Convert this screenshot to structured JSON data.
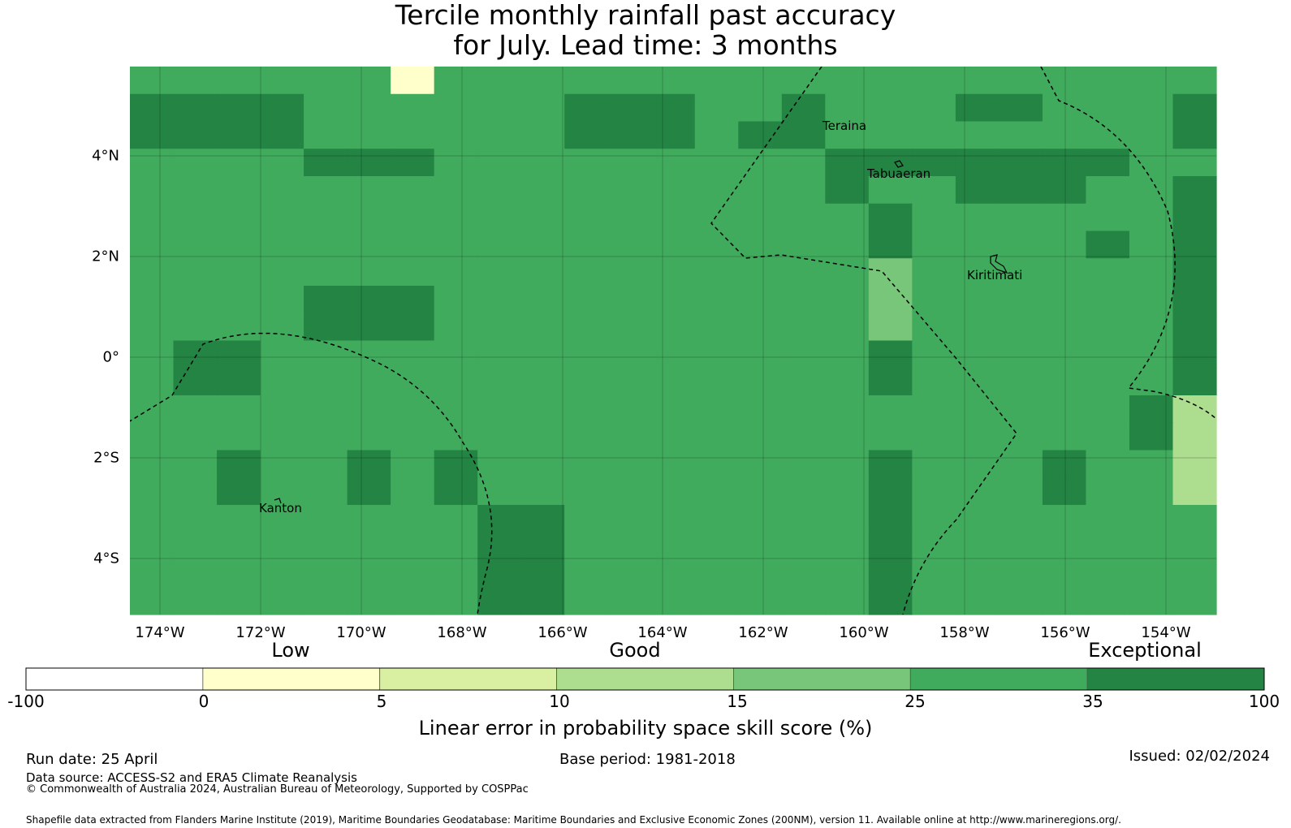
{
  "title": {
    "line1": "Tercile monthly rainfall past accuracy",
    "line2": "for July. Lead time: 3 months"
  },
  "map": {
    "x_ticks": [
      "174°W",
      "172°W",
      "170°W",
      "168°W",
      "166°W",
      "164°W",
      "162°W",
      "160°W",
      "158°W",
      "156°W",
      "154°W"
    ],
    "y_ticks": [
      "4°N",
      "2°N",
      "0°",
      "2°S",
      "4°S"
    ],
    "places": [
      "Teraina",
      "Tabuaeran",
      "Kiritimati",
      "Kanton"
    ],
    "grid_values": [
      "5555551555555555555555555",
      "6666555555666556555665556",
      "6666555555666566555555556",
      "5555666555555555666666655",
      "5555555555555555655666556",
      "5555555555555555565555556",
      "5555555555555555565555656",
      "5555555555555555545555556",
      "5555666555555555545555556",
      "5555666555555555545555556",
      "5665555555555555565555556",
      "5665555555555555565555556",
      "5555555555555555555555563",
      "5555555555555555555555563",
      "5565565655555555565556553",
      "5565565655555555565556553",
      "5555555566555555565555555",
      "5555555566555555565555555",
      "5555555566555555565555555",
      "5555555566555555565555555"
    ],
    "colors": {
      "low": "#ffffff",
      "0-5": "#ffffcc",
      "5-10": "#d9f0a3",
      "10-15": "#addd8e",
      "15-25": "#78c679",
      "25-35": "#41ab5d",
      "35-100": "#238443"
    }
  },
  "legend": {
    "categories": [
      "Low",
      "Good",
      "Exceptional"
    ],
    "bins": [
      -100,
      0,
      5,
      10,
      15,
      25,
      35,
      100
    ],
    "tick_labels": [
      "-100",
      "0",
      "5",
      "10",
      "15",
      "25",
      "35",
      "100"
    ],
    "bin_colors": [
      "#ffffff",
      "#ffffcc",
      "#d9f0a3",
      "#addd8e",
      "#78c679",
      "#41ab5d",
      "#238443"
    ],
    "label": "Linear error in probability space skill score (%)"
  },
  "footer": {
    "run_date": "Run date: 25 April",
    "base_period": "Base period: 1981-2018",
    "issued": "Issued: 02/02/2024",
    "data_source": "Data source: ACCESS-S2 and ERA5 Climate Reanalysis",
    "copyright": "© Commonwealth of Australia 2024, Australian Bureau of Meteorology, Supported by COSPPac",
    "shapefile": "Shapefile data extracted from Flanders Marine Institute (2019), Maritime Boundaries Geodatabase: Maritime Boundaries and Exclusive Economic Zones (200NM), version 11. Available online at http://www.marineregions.org/."
  }
}
